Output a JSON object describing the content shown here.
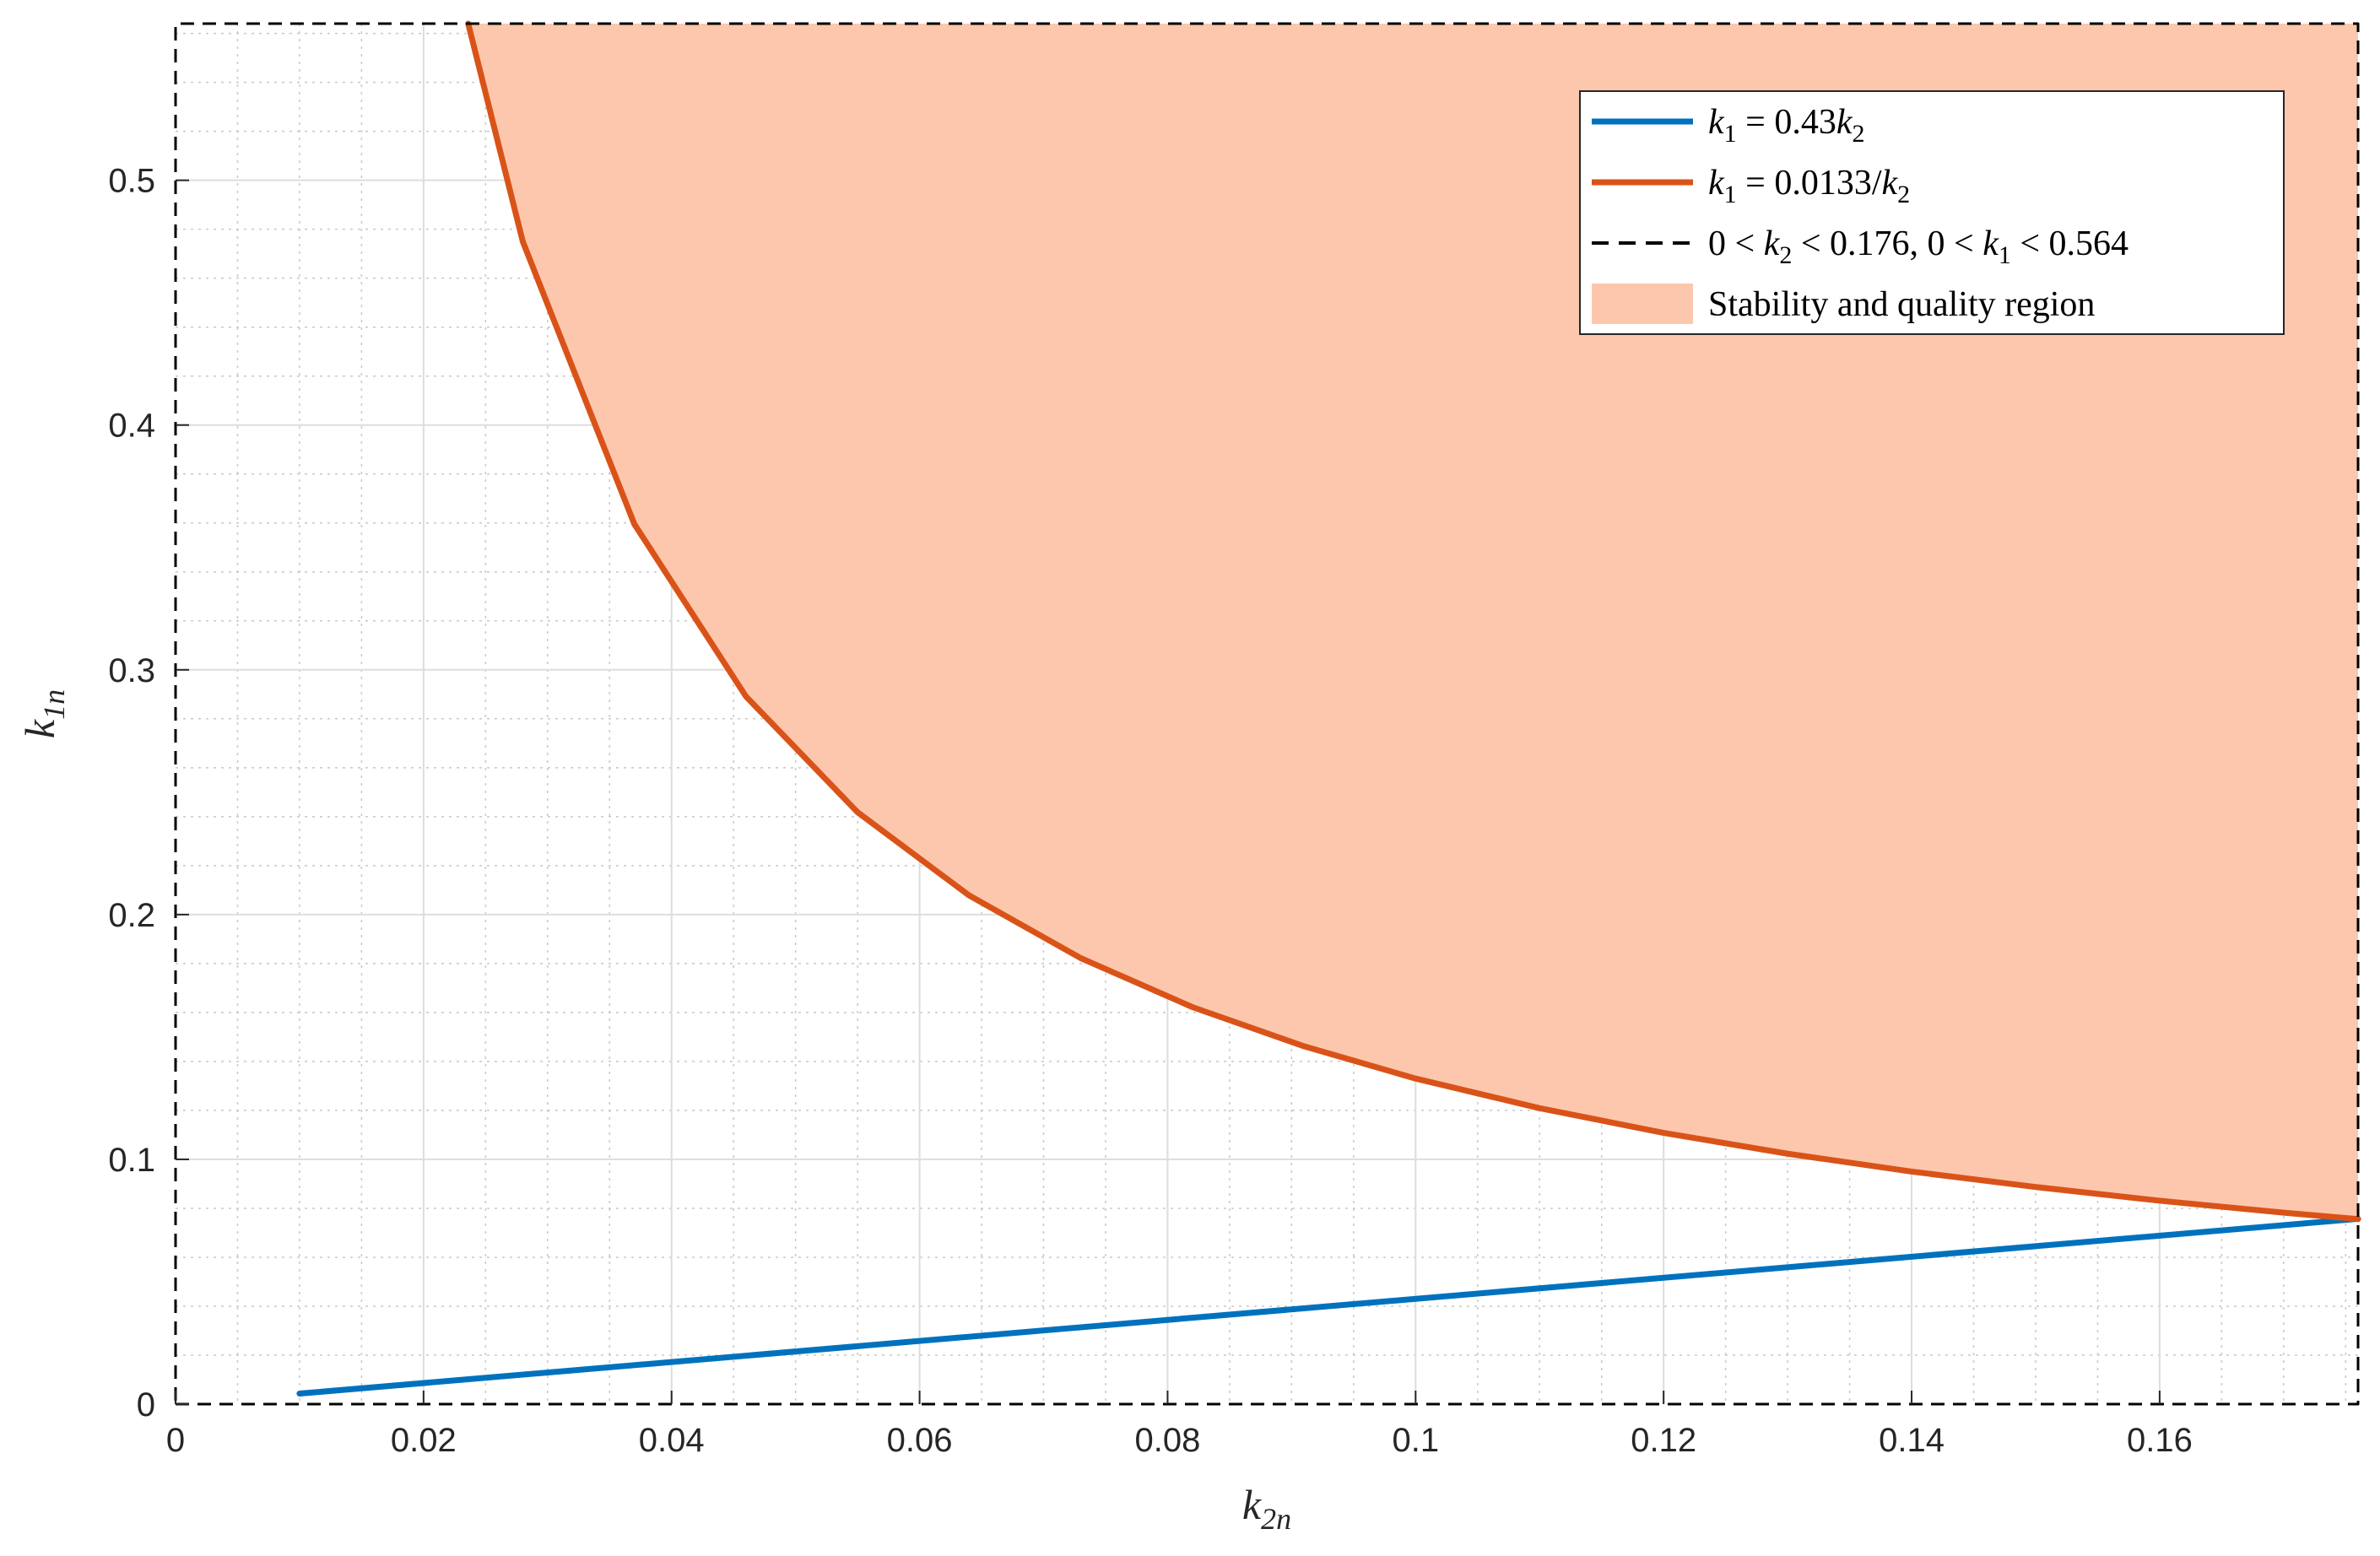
{
  "chart_data": {
    "type": "line",
    "title": "",
    "xlabel": {
      "base": "k",
      "sub": "2n"
    },
    "ylabel": {
      "base": "k",
      "sub": "1n"
    },
    "xlim": [
      0,
      0.176
    ],
    "ylim": [
      0,
      0.564
    ],
    "x_ticks": [
      0,
      0.02,
      0.04,
      0.06,
      0.08,
      0.1,
      0.12,
      0.14,
      0.16
    ],
    "x_tick_labels": [
      "0",
      "0.02",
      "0.04",
      "0.06",
      "0.08",
      "0.1",
      "0.12",
      "0.14",
      "0.16"
    ],
    "y_ticks": [
      0,
      0.1,
      0.2,
      0.3,
      0.4,
      0.5
    ],
    "y_tick_labels": [
      "0",
      "0.1",
      "0.2",
      "0.3",
      "0.4",
      "0.5"
    ],
    "grid": true,
    "minor_grid": true,
    "legend_position": "top-right",
    "series": [
      {
        "name": "k1 = 0.43k2",
        "color": "#0072bd",
        "style": "solid",
        "x": [
          0.01,
          0.176
        ],
        "y": [
          0.0043,
          0.0757
        ]
      },
      {
        "name": "k1 = 0.0133/k2",
        "color": "#d95319",
        "style": "solid",
        "x": [
          0.0236,
          0.028,
          0.037,
          0.046,
          0.055,
          0.064,
          0.073,
          0.082,
          0.091,
          0.1,
          0.11,
          0.12,
          0.13,
          0.14,
          0.15,
          0.16,
          0.17,
          0.176
        ],
        "y": [
          0.564,
          0.475,
          0.3595,
          0.2891,
          0.2418,
          0.2078,
          0.1822,
          0.1622,
          0.1462,
          0.133,
          0.1209,
          0.1108,
          0.1023,
          0.095,
          0.0887,
          0.0831,
          0.0782,
          0.0756
        ]
      },
      {
        "name": "0 < k2 < 0.176, 0 < k1 < 0.564",
        "color": "#000000",
        "style": "dashed",
        "x": [
          0,
          0.176,
          0.176,
          0,
          0
        ],
        "y": [
          0,
          0,
          0.564,
          0.564,
          0
        ]
      }
    ],
    "region": {
      "name": "Stability and quality region",
      "color": "#fdc7ad"
    },
    "legend": [
      {
        "key": "blue",
        "parts": [
          [
            "it",
            "k"
          ],
          [
            "sub",
            "1"
          ],
          [
            "rm",
            " = 0.43"
          ],
          [
            "it",
            "k"
          ],
          [
            "sub",
            "2"
          ]
        ]
      },
      {
        "key": "orange",
        "parts": [
          [
            "it",
            "k"
          ],
          [
            "sub",
            "1"
          ],
          [
            "rm",
            " = 0.0133/"
          ],
          [
            "it",
            "k"
          ],
          [
            "sub",
            "2"
          ]
        ]
      },
      {
        "key": "dashed",
        "parts": [
          [
            "rm",
            "0 < "
          ],
          [
            "it",
            "k"
          ],
          [
            "sub",
            "2"
          ],
          [
            "rm",
            " < 0.176, 0 < "
          ],
          [
            "it",
            "k"
          ],
          [
            "sub",
            "1"
          ],
          [
            "rm",
            " < 0.564"
          ]
        ]
      },
      {
        "key": "patch",
        "parts": [
          [
            "rm",
            "Stability and quality region"
          ]
        ]
      }
    ]
  }
}
